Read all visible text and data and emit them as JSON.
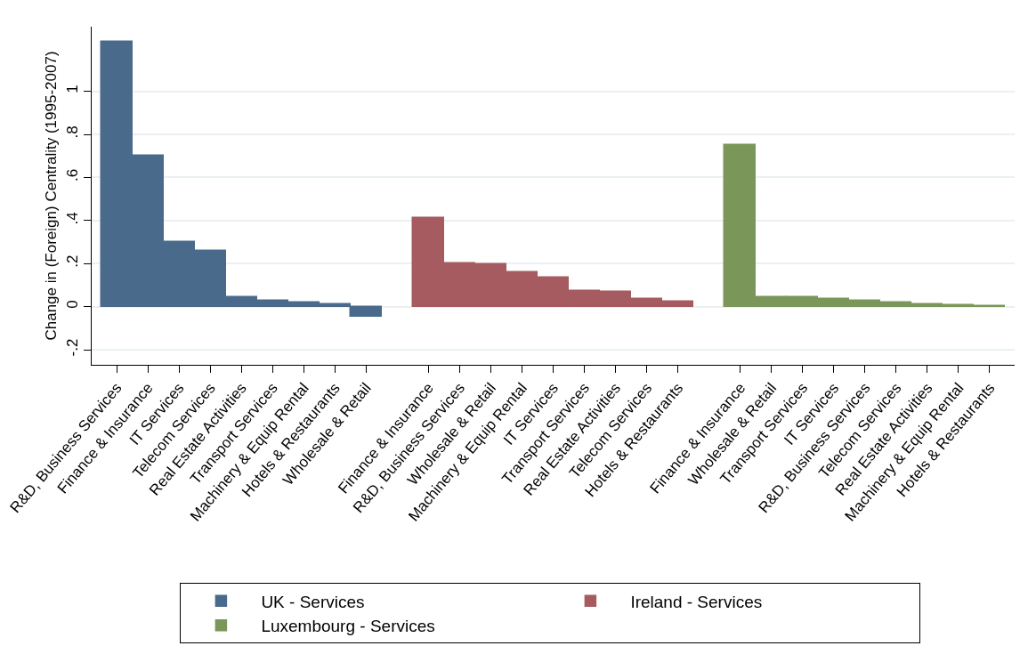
{
  "chart_data": {
    "type": "bar",
    "ylabel": "Change in (Foreign) Centrality (1995-2007)",
    "categories": [
      "R&D, Business Services",
      "Finance & Insurance",
      "IT Services",
      "Telecom Services",
      "Real Estate Activities",
      "Transport Services",
      "Machinery & Equip Rental",
      "Hotels & Restaurants",
      "Wholesale & Retail",
      null,
      "Finance & Insurance",
      "R&D, Business Services",
      "Wholesale & Retail",
      "Machinery & Equip Rental",
      "IT Services",
      "Transport Services",
      "Real Estate Activities",
      "Telecom Services",
      "Hotels & Restaurants",
      null,
      "Finance & Insurance",
      "Wholesale & Retail",
      "Transport Services",
      "IT Services",
      "R&D, Business Services",
      "Telecom Services",
      "Real Estate Activities",
      "Machinery & Equip Rental",
      "Hotels & Restaurants"
    ],
    "series": [
      {
        "name": "UK - Services",
        "color": "#4a6a8b",
        "values": [
          1.23,
          0.7,
          0.3,
          0.26,
          0.044,
          0.029,
          0.02,
          0.009,
          -0.047,
          null,
          null,
          null,
          null,
          null,
          null,
          null,
          null,
          null,
          null,
          null,
          null,
          null,
          null,
          null,
          null,
          null,
          null,
          null,
          null
        ]
      },
      {
        "name": "Ireland - Services",
        "color": "#a55b5f",
        "values": [
          null,
          null,
          null,
          null,
          null,
          null,
          null,
          null,
          null,
          null,
          0.41,
          0.2,
          0.195,
          0.161,
          0.133,
          0.073,
          0.068,
          0.035,
          0.025,
          null,
          null,
          null,
          null,
          null,
          null,
          null,
          null,
          null,
          null
        ]
      },
      {
        "name": "Luxembourg - Services",
        "color": "#7a9658",
        "values": [
          null,
          null,
          null,
          null,
          null,
          null,
          null,
          null,
          null,
          null,
          null,
          null,
          null,
          null,
          null,
          null,
          null,
          null,
          null,
          null,
          0.752,
          0.045,
          0.045,
          0.036,
          0.027,
          0.021,
          0.013,
          0.007,
          0.001
        ]
      }
    ],
    "ylim": [
      -0.27,
      1.3
    ],
    "yticks": [
      {
        "value": -0.2,
        "label": "-.2"
      },
      0,
      {
        "value": 0.2,
        "label": ".2"
      },
      {
        "value": 0.4,
        "label": ".4"
      },
      {
        "value": 0.6,
        "label": ".6"
      },
      {
        "value": 0.8,
        "label": ".8"
      },
      1
    ],
    "grid": "y",
    "legend": "bottom"
  }
}
